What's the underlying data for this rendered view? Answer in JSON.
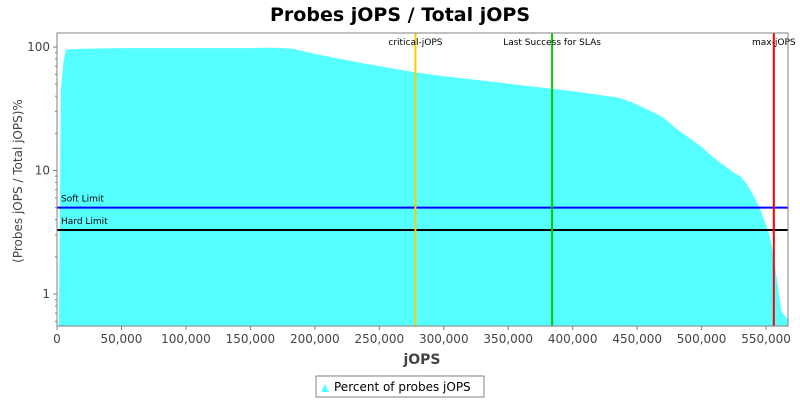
{
  "chart_data": {
    "type": "area",
    "title": "Probes jOPS / Total jOPS",
    "xlabel": "jOPS",
    "ylabel": "(Probes jOPS / Total jOPS)%",
    "yscale": "log",
    "xlim": [
      0,
      567000
    ],
    "ylim": [
      0.55,
      130
    ],
    "grid": false,
    "legend_position": "bottom-center",
    "x_ticks": [
      0,
      50000,
      100000,
      150000,
      200000,
      250000,
      300000,
      350000,
      400000,
      450000,
      500000,
      550000
    ],
    "x_tick_labels": [
      "0",
      "50,000",
      "100,000",
      "150,000",
      "200,000",
      "250,000",
      "300,000",
      "350,000",
      "400,000",
      "450,000",
      "500,000",
      "550,000"
    ],
    "y_ticks": [
      1,
      10,
      100
    ],
    "y_tick_labels": [
      "1",
      "10",
      "100"
    ],
    "series": [
      {
        "name": "Percent of probes jOPS",
        "color": "#55ffff",
        "x": [
          1500,
          3000,
          5000,
          7000,
          10000,
          20000,
          50000,
          100000,
          150000,
          165000,
          175000,
          183000,
          190000,
          200000,
          220000,
          250000,
          280000,
          300000,
          320000,
          340000,
          360000,
          384000,
          400000,
          420000,
          435000,
          445000,
          453000,
          460000,
          470000,
          480000,
          490000,
          500000,
          510000,
          520000,
          525000,
          530000,
          535000,
          540000,
          545000,
          550000,
          553000,
          556000,
          558000,
          560000,
          562000,
          567000
        ],
        "y": [
          0.6,
          45,
          75,
          95,
          96,
          97,
          98,
          98,
          98,
          99,
          98,
          97,
          93,
          88,
          80,
          70,
          62,
          58,
          55,
          52,
          49,
          46,
          44,
          41,
          39,
          36,
          33,
          30.5,
          27,
          22,
          18.5,
          15.5,
          12.5,
          10.5,
          9.6,
          9.0,
          7.8,
          6.3,
          5.0,
          3.6,
          2.9,
          2.0,
          1.4,
          1.0,
          0.72,
          0.62
        ]
      }
    ],
    "horizontal_lines": [
      {
        "label": "Soft Limit",
        "y": 5,
        "color": "#0000ff"
      },
      {
        "label": "Hard Limit",
        "y": 3.3,
        "color": "#000000"
      }
    ],
    "vertical_lines": [
      {
        "label": "critical-jOPS",
        "x": 278000,
        "color": "#ffcc00"
      },
      {
        "label": "Last Success for SLAs",
        "x": 384000,
        "color": "#00cc00"
      },
      {
        "label": "max-jOPS",
        "x": 556000,
        "color": "#ff0000"
      }
    ]
  }
}
